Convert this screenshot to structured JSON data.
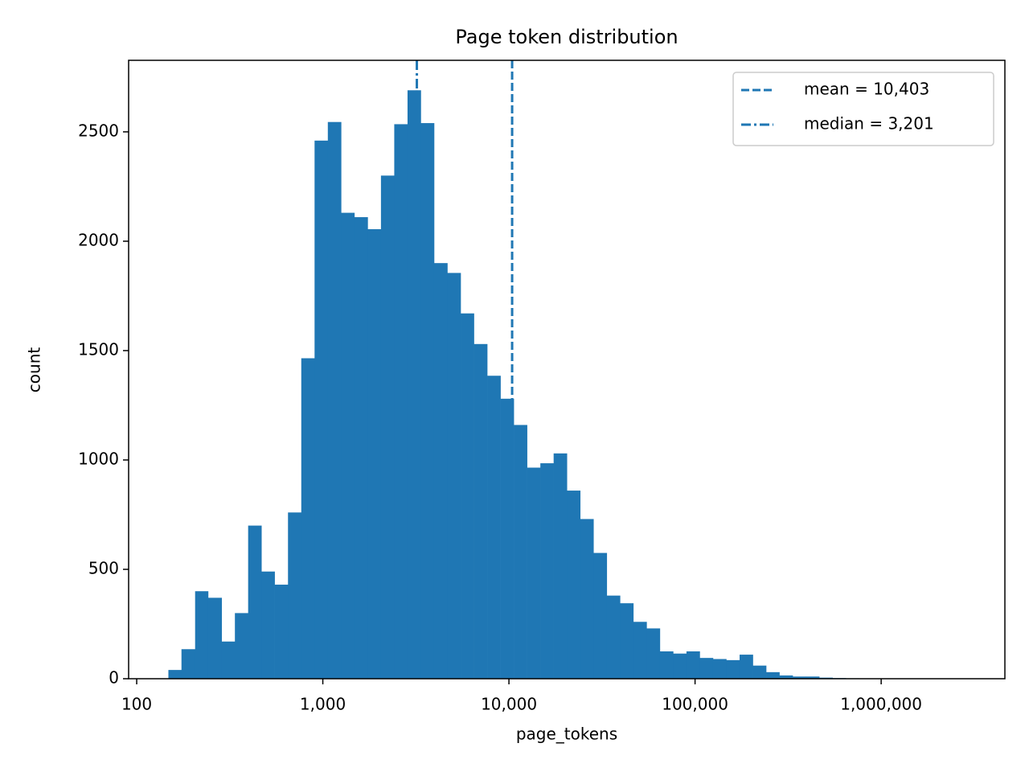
{
  "chart_data": {
    "type": "histogram",
    "title": "Page token distribution",
    "x_label": "page_tokens",
    "y_label": "count",
    "color": "#1f77b4",
    "xscale": "log",
    "legend": "upper right",
    "bins": [
      148,
      174,
      206,
      242,
      286,
      337,
      397,
      468,
      551,
      650,
      766,
      903,
      1064,
      1254,
      1478,
      1742,
      2053,
      2420,
      2852,
      3361,
      3962,
      4669,
      5503,
      6486,
      7644,
      9010,
      10619,
      12515,
      14750,
      17385,
      20490,
      24149,
      28462,
      33545,
      39536,
      46597,
      54919,
      64727,
      76287,
      89911,
      105968,
      124893,
      147198,
      173486,
      204469,
      240985,
      284022,
      334745,
      394527,
      464985,
      548028,
      645901,
      761253,
      897207,
      1057441,
      1246291,
      1468868,
      1731196,
      2040372,
      2404765,
      2834237
    ],
    "counts": [
      40,
      135,
      400,
      370,
      170,
      300,
      700,
      490,
      430,
      760,
      1465,
      2460,
      2545,
      2130,
      2110,
      2055,
      2300,
      2535,
      2690,
      2540,
      1900,
      1855,
      1670,
      1530,
      1385,
      1280,
      1160,
      965,
      985,
      1030,
      860,
      730,
      575,
      380,
      345,
      260,
      230,
      125,
      115,
      125,
      95,
      90,
      85,
      110,
      60,
      30,
      15,
      10,
      10,
      5,
      3,
      2,
      1,
      1,
      1,
      0,
      0,
      0,
      1,
      1
    ],
    "vlines": [
      {
        "name": "mean = 10,403",
        "value": 10403,
        "style": "dashed"
      },
      {
        "name": "median = 3,201",
        "value": 3201,
        "style": "dashdot"
      }
    ],
    "xlim": [
      90.5,
      4620000
    ],
    "ylim": [
      0,
      2827
    ],
    "xticks": [
      100,
      {
        "value": 1000,
        "label": "1,000"
      },
      {
        "value": 10000,
        "label": "10,000"
      },
      {
        "value": 100000,
        "label": "100,000"
      },
      {
        "value": 1000000,
        "label": "1,000,000"
      }
    ],
    "yticks": [
      0,
      500,
      1000,
      1500,
      2000,
      2500
    ]
  }
}
